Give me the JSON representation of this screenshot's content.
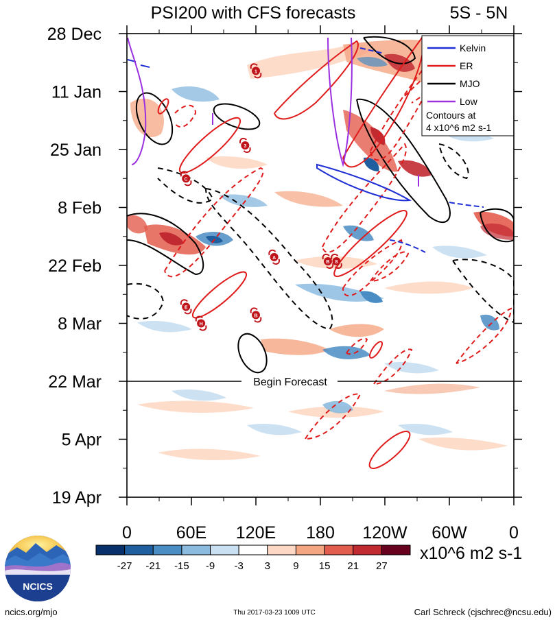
{
  "header": {
    "title": "PSI200 with CFS forecasts",
    "region": "5S - 5N"
  },
  "chart_data": {
    "type": "heatmap",
    "title": "PSI200 with CFS forecasts",
    "subtitle": "5S - 5N",
    "x_axis": {
      "ticks": [
        "0",
        "60E",
        "120E",
        "180",
        "120W",
        "60W",
        "0"
      ],
      "tick_longitudes": [
        0,
        60,
        120,
        180,
        240,
        300,
        360
      ],
      "range": [
        0,
        360
      ]
    },
    "y_axis": {
      "ticks": [
        "28 Dec",
        "11 Jan",
        "25 Jan",
        "8 Feb",
        "22 Feb",
        "8 Mar",
        "22 Mar",
        "5 Apr",
        "19 Apr"
      ],
      "tick_dates": [
        "2016-12-28",
        "2017-01-11",
        "2017-01-25",
        "2017-02-08",
        "2017-02-22",
        "2017-03-08",
        "2017-03-22",
        "2017-04-05",
        "2017-04-19"
      ],
      "range": [
        "2016-12-28",
        "2017-04-19"
      ],
      "direction": "top-to-bottom"
    },
    "forecast_line": {
      "date": "2017-03-22",
      "label": "Begin Forecast"
    },
    "colorbar": {
      "labels": [
        "-27",
        "-21",
        "-15",
        "-9",
        "-3",
        "3",
        "9",
        "15",
        "21",
        "27"
      ],
      "colors": [
        "#08306b",
        "#1f5fa0",
        "#4a8cc4",
        "#8cbbe0",
        "#c9e0f2",
        "#ffffff",
        "#fdd8c4",
        "#f4a582",
        "#e35d4e",
        "#c22a32",
        "#67001f"
      ],
      "units": "x10^6 m2 s-1"
    },
    "legend": {
      "placement": "top-right",
      "entries": [
        {
          "name": "Kelvin",
          "color": "#1f2fd6"
        },
        {
          "name": "ER",
          "color": "#e01b1b"
        },
        {
          "name": "MJO",
          "color": "#000000"
        },
        {
          "name": "Low",
          "color": "#9b30e0"
        }
      ],
      "note_line1": "Contours at",
      "note_line2": "4 x10^6 m2 s-1"
    },
    "storm_markers": [
      {
        "label": "1",
        "lon": 120,
        "date": "2017-01-06"
      },
      {
        "label": "3",
        "lon": 110,
        "date": "2017-01-24"
      },
      {
        "label": "C",
        "lon": 55,
        "date": "2017-02-01"
      },
      {
        "label": "A",
        "lon": 137,
        "date": "2017-02-20"
      },
      {
        "label": "B",
        "lon": 187,
        "date": "2017-02-21"
      },
      {
        "label": "8",
        "lon": 195,
        "date": "2017-02-21"
      },
      {
        "label": "E",
        "lon": 55,
        "date": "2017-03-04"
      },
      {
        "label": "B",
        "lon": 120,
        "date": "2017-03-06"
      },
      {
        "label": "H",
        "lon": 69,
        "date": "2017-03-08"
      }
    ]
  },
  "footer": {
    "logo_text": "NCICS",
    "url": "ncics.org/mjo",
    "timestamp": "Thu 2017-03-23 1009 UTC",
    "author": "Carl Schreck (cjschrec@ncsu.edu)"
  },
  "colors": {
    "kelvin": "#1f2fd6",
    "er": "#e01b1b",
    "mjo": "#000000",
    "low": "#9b30e0",
    "tc_marker": "#c0141b"
  }
}
